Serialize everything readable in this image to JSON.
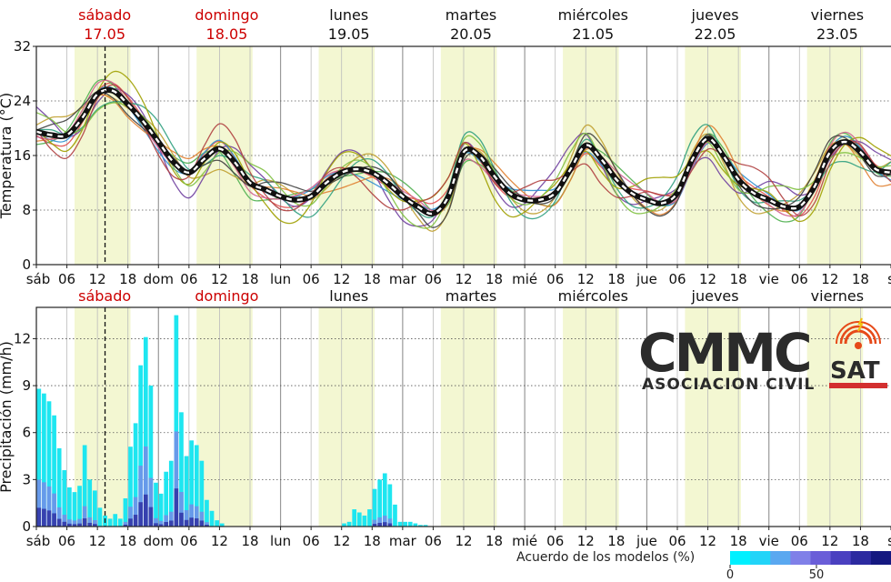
{
  "chart_data": [
    {
      "type": "line",
      "ylabel": "Temperatura (°C)",
      "yticks": [
        "0",
        "8",
        "16",
        "24",
        "32"
      ],
      "ylim": [
        0,
        32
      ],
      "grid": true,
      "day_headers": [
        {
          "day": "sábado",
          "date": "17.05",
          "color": "#cc0000"
        },
        {
          "day": "domingo",
          "date": "18.05",
          "color": "#cc0000"
        },
        {
          "day": "lunes",
          "date": "19.05",
          "color": "#111111"
        },
        {
          "day": "martes",
          "date": "20.05",
          "color": "#111111"
        },
        {
          "day": "miércoles",
          "date": "21.05",
          "color": "#111111"
        },
        {
          "day": "jueves",
          "date": "22.05",
          "color": "#111111"
        },
        {
          "day": "viernes",
          "date": "23.05",
          "color": "#111111"
        }
      ],
      "x_ticks": [
        "sáb",
        "06",
        "12",
        "18",
        "dom",
        "06",
        "12",
        "18",
        "lun",
        "06",
        "12",
        "18",
        "mar",
        "06",
        "12",
        "18",
        "mié",
        "06",
        "12",
        "18",
        "jue",
        "06",
        "12",
        "18",
        "vie",
        "06",
        "12",
        "18",
        "s"
      ],
      "x_hours_from_first_midnight": [
        0,
        6,
        12,
        18,
        24,
        30,
        36,
        42,
        48,
        54,
        60,
        66,
        72,
        78,
        84,
        90,
        96,
        102,
        108,
        114,
        120,
        126,
        132,
        138,
        144,
        150,
        156,
        162,
        168
      ],
      "mean_series": {
        "hours": [
          0,
          3,
          6,
          9,
          12,
          15,
          18,
          21,
          24,
          27,
          30,
          33,
          36,
          39,
          42,
          45,
          48,
          51,
          54,
          57,
          60,
          63,
          66,
          69,
          72,
          75,
          78,
          81,
          84,
          87,
          90,
          93,
          96,
          99,
          102,
          105,
          108,
          111,
          114,
          117,
          120,
          123,
          126,
          129,
          132,
          135,
          138,
          141,
          144,
          147,
          150,
          153,
          156,
          159,
          162,
          165,
          168
        ],
        "values": [
          19.5,
          19,
          19,
          21.5,
          25,
          25.5,
          23.5,
          21,
          18,
          15,
          13.5,
          15.5,
          17,
          15,
          12,
          11,
          10,
          9.5,
          10,
          12,
          13.5,
          14,
          13.5,
          12,
          10,
          8.5,
          7.5,
          10,
          16.5,
          16,
          13,
          10.5,
          9.5,
          9.5,
          10.5,
          14,
          17.5,
          15.5,
          12.5,
          10.5,
          9.5,
          9,
          10.5,
          15.5,
          18.5,
          16,
          12.5,
          10.5,
          9.5,
          8.5,
          8.5,
          11.5,
          16.5,
          18,
          16.5,
          14,
          13.5
        ]
      },
      "vertical_marker_hour": 13.5
    },
    {
      "type": "bar",
      "ylabel": "Precipitación (mm/h)",
      "yticks": [
        "0",
        "3",
        "6",
        "9",
        "12"
      ],
      "ylim": [
        0,
        14
      ],
      "grid": true,
      "day_labels": [
        {
          "day": "sábado",
          "color": "#cc0000"
        },
        {
          "day": "domingo",
          "color": "#cc0000"
        },
        {
          "day": "lunes",
          "color": "#111111"
        },
        {
          "day": "martes",
          "color": "#111111"
        },
        {
          "day": "miércoles",
          "color": "#111111"
        },
        {
          "day": "jueves",
          "color": "#111111"
        },
        {
          "day": "viernes",
          "color": "#111111"
        }
      ],
      "bars": [
        {
          "hour": 0.5,
          "value": 8.8
        },
        {
          "hour": 1.5,
          "value": 8.5
        },
        {
          "hour": 2.5,
          "value": 8.0
        },
        {
          "hour": 3.5,
          "value": 7.1
        },
        {
          "hour": 4.5,
          "value": 5.0
        },
        {
          "hour": 5.5,
          "value": 3.6
        },
        {
          "hour": 6.5,
          "value": 2.5
        },
        {
          "hour": 7.5,
          "value": 2.2
        },
        {
          "hour": 8.5,
          "value": 2.6
        },
        {
          "hour": 9.5,
          "value": 5.2
        },
        {
          "hour": 10.5,
          "value": 3.0
        },
        {
          "hour": 11.5,
          "value": 2.3
        },
        {
          "hour": 12.5,
          "value": 1.2
        },
        {
          "hour": 13.5,
          "value": 0.7
        },
        {
          "hour": 14.5,
          "value": 0.5
        },
        {
          "hour": 15.5,
          "value": 0.8
        },
        {
          "hour": 16.5,
          "value": 0.5
        },
        {
          "hour": 17.5,
          "value": 1.8
        },
        {
          "hour": 18.5,
          "value": 5.1
        },
        {
          "hour": 19.5,
          "value": 6.6
        },
        {
          "hour": 20.5,
          "value": 10.3
        },
        {
          "hour": 21.5,
          "value": 12.1
        },
        {
          "hour": 22.5,
          "value": 9.0
        },
        {
          "hour": 23.5,
          "value": 2.8
        },
        {
          "hour": 24.5,
          "value": 2.1
        },
        {
          "hour": 25.5,
          "value": 3.5
        },
        {
          "hour": 26.5,
          "value": 4.2
        },
        {
          "hour": 27.5,
          "value": 13.5
        },
        {
          "hour": 28.5,
          "value": 7.3
        },
        {
          "hour": 29.5,
          "value": 4.5
        },
        {
          "hour": 30.5,
          "value": 5.5
        },
        {
          "hour": 31.5,
          "value": 5.2
        },
        {
          "hour": 32.5,
          "value": 4.2
        },
        {
          "hour": 33.5,
          "value": 1.7
        },
        {
          "hour": 34.5,
          "value": 1.0
        },
        {
          "hour": 35.5,
          "value": 0.4
        },
        {
          "hour": 36.5,
          "value": 0.2
        },
        {
          "hour": 60.5,
          "value": 0.2
        },
        {
          "hour": 61.5,
          "value": 0.3
        },
        {
          "hour": 62.5,
          "value": 1.1
        },
        {
          "hour": 63.5,
          "value": 0.9
        },
        {
          "hour": 64.5,
          "value": 0.7
        },
        {
          "hour": 65.5,
          "value": 1.1
        },
        {
          "hour": 66.5,
          "value": 2.4
        },
        {
          "hour": 67.5,
          "value": 3.0
        },
        {
          "hour": 68.5,
          "value": 3.4
        },
        {
          "hour": 69.5,
          "value": 2.7
        },
        {
          "hour": 70.5,
          "value": 1.4
        },
        {
          "hour": 71.5,
          "value": 0.3
        },
        {
          "hour": 72.5,
          "value": 0.3
        },
        {
          "hour": 73.5,
          "value": 0.3
        },
        {
          "hour": 74.5,
          "value": 0.2
        },
        {
          "hour": 75.5,
          "value": 0.1
        },
        {
          "hour": 76.5,
          "value": 0.1
        }
      ],
      "legend": {
        "title": "Acuerdo de los modelos (%)",
        "ticks": [
          "0",
          "50"
        ],
        "colors": [
          "#00f0ff",
          "#22d4f8",
          "#5aa8f0",
          "#8080e8",
          "#6a5ed8",
          "#4a40c0",
          "#2c2aa0",
          "#141880"
        ]
      }
    }
  ],
  "logo": {
    "title": "CMMC",
    "subtitle": "ASOCIACION CIVIL",
    "badge": "SAT"
  },
  "colors": {
    "weekend_red": "#cc0000",
    "band": "#f3f7d2",
    "mean_line": "#111111",
    "precip_bar": "#1ee6f0"
  }
}
